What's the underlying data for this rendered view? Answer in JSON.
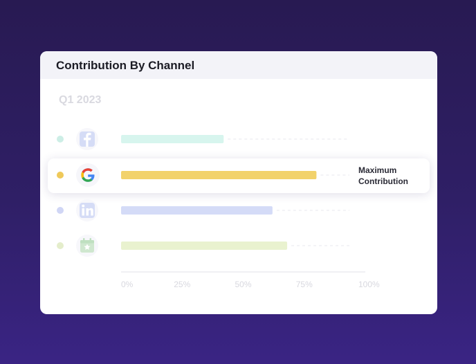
{
  "card": {
    "title": "Contribution By Channel",
    "period": "Q1 2023"
  },
  "chart_data": {
    "type": "bar",
    "orientation": "horizontal",
    "title": "Contribution By Channel",
    "subtitle": "Q1 2023",
    "categories": [
      "Facebook",
      "Google",
      "LinkedIn",
      "Events"
    ],
    "values": [
      42,
      80,
      62,
      68
    ],
    "xlim": [
      0,
      100
    ],
    "x_ticks": [
      "0%",
      "25%",
      "50%",
      "75%",
      "100%"
    ],
    "highlighted_category": "Google",
    "annotation": [
      "Maximum",
      "Contribution"
    ],
    "colors": [
      "#d7f5ee",
      "#f2d26b",
      "#d4dbf7",
      "#e9f2cf"
    ],
    "dot_colors": [
      "#cdeee6",
      "#efc95a",
      "#d0d6f5",
      "#e4edcb"
    ],
    "grid": false
  },
  "icons": {
    "facebook": "facebook-icon",
    "google": "google-icon",
    "linkedin": "linkedin-icon",
    "events": "calendar-star-icon"
  }
}
